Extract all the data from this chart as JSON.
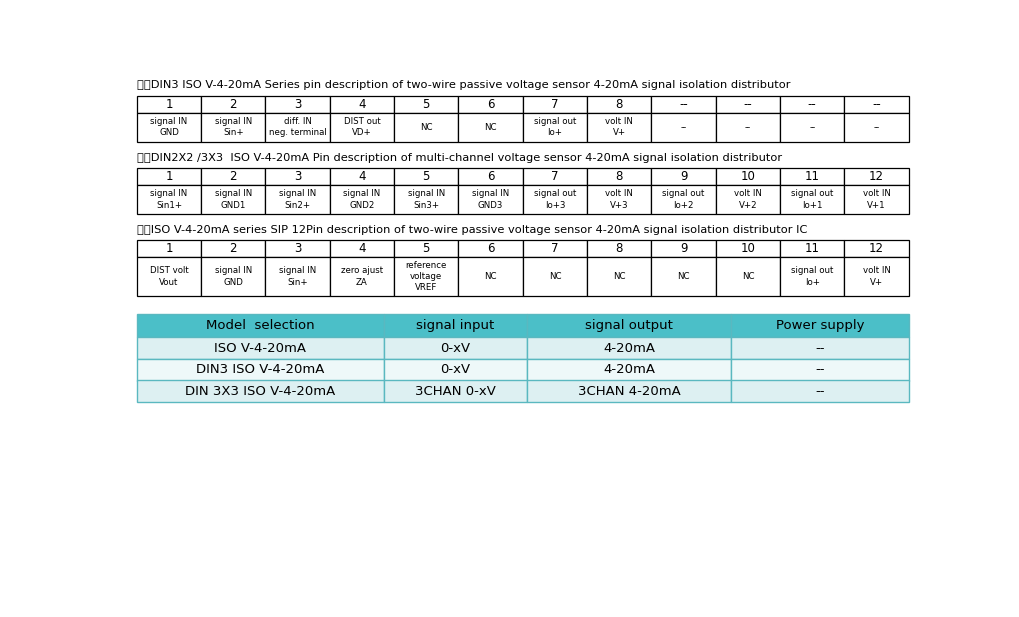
{
  "bg_color": "#ffffff",
  "section1_title": "一、DIN3 ISO V-4-20mA Series pin description of two-wire passive voltage sensor 4-20mA signal isolation distributor",
  "section2_title": "二、DIN2X2 /3X3  ISO V-4-20mA Pin description of multi-channel voltage sensor 4-20mA signal isolation distributor",
  "section3_title": "三、ISO V-4-20mA series SIP 12Pin description of two-wire passive voltage sensor 4-20mA signal isolation distributor IC",
  "table1_headers": [
    "1",
    "2",
    "3",
    "4",
    "5",
    "6",
    "7",
    "8",
    "--",
    "--",
    "--",
    "--"
  ],
  "table1_data": [
    "signal IN\nGND",
    "signal IN\nSin+",
    "diff. IN\nneg. terminal",
    "DIST out\nVD+",
    "NC",
    "NC",
    "signal out\nIo+",
    "volt IN\nV+",
    "--",
    "--",
    "--",
    "--"
  ],
  "table2_headers": [
    "1",
    "2",
    "3",
    "4",
    "5",
    "6",
    "7",
    "8",
    "9",
    "10",
    "11",
    "12"
  ],
  "table2_data": [
    "signal IN\nSin1+",
    "signal IN\nGND1",
    "signal IN\nSin2+",
    "signal IN\nGND2",
    "signal IN\nSin3+",
    "signal IN\nGND3",
    "signal out\nIo+3",
    "volt IN\nV+3",
    "signal out\nIo+2",
    "volt IN\nV+2",
    "signal out\nIo+1",
    "volt IN\nV+1"
  ],
  "table3_headers": [
    "1",
    "2",
    "3",
    "4",
    "5",
    "6",
    "7",
    "8",
    "9",
    "10",
    "11",
    "12"
  ],
  "table3_data": [
    "DIST volt\nVout",
    "signal IN\nGND",
    "signal IN\nSin+",
    "zero ajust\nZA",
    "reference\nvoltage\nVREF",
    "NC",
    "NC",
    "NC",
    "NC",
    "NC",
    "signal out\nIo+",
    "volt IN\nV+"
  ],
  "bottom_headers": [
    "Model  selection",
    "signal input",
    "signal output",
    "Power supply"
  ],
  "bottom_data": [
    [
      "ISO V-4-20mA",
      "0-xV",
      "4-20mA",
      "--"
    ],
    [
      "DIN3 ISO V-4-20mA",
      "0-xV",
      "4-20mA",
      "--"
    ],
    [
      "DIN 3X3 ISO V-4-20mA",
      "3CHAN 0-xV",
      "3CHAN 4-20mA",
      "--"
    ]
  ],
  "header_bg": "#4bbfc8",
  "row_bg_even": "#ddf0f2",
  "row_bg_odd": "#eef8f9",
  "table_border": "#000000",
  "text_color": "#000000",
  "bottom_border": "#5ab8c0"
}
